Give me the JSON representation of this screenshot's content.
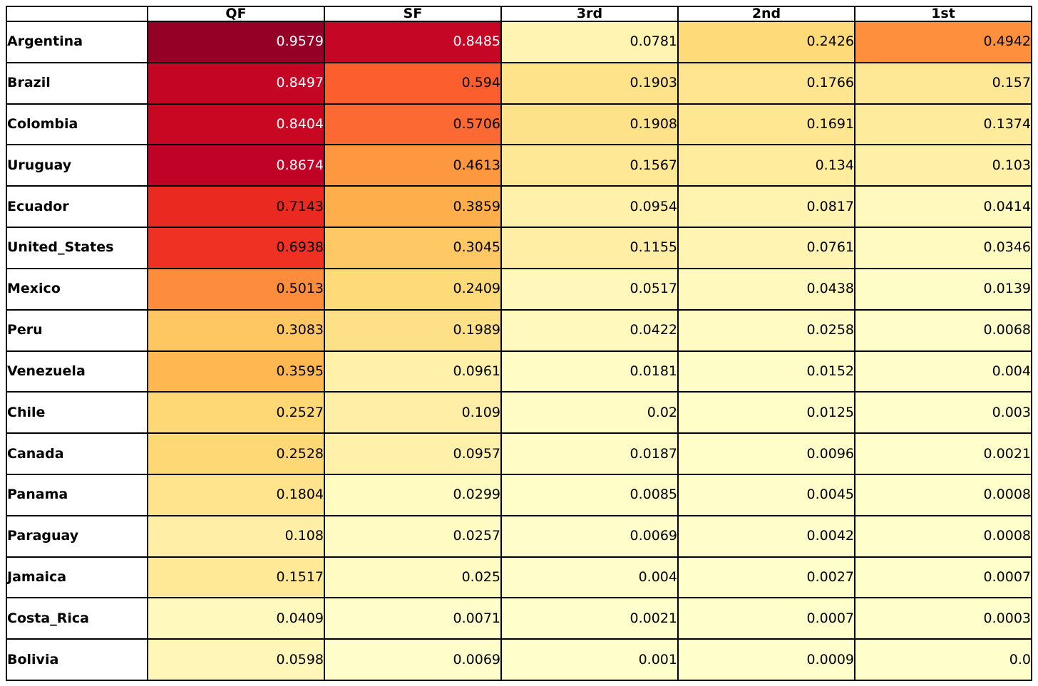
{
  "chart_data": {
    "type": "heatmap",
    "title": "",
    "xlabel": "",
    "ylabel": "",
    "legend": null,
    "grid": "black cell borders, no outer border on empty corner cell",
    "columns": [
      "QF",
      "SF",
      "3rd",
      "2nd",
      "1st"
    ],
    "rows": [
      {
        "label": "Argentina",
        "values": [
          0.9579,
          0.8485,
          0.0781,
          0.2426,
          0.4942
        ]
      },
      {
        "label": "Brazil",
        "values": [
          0.8497,
          0.594,
          0.1903,
          0.1766,
          0.157
        ]
      },
      {
        "label": "Colombia",
        "values": [
          0.8404,
          0.5706,
          0.1908,
          0.1691,
          0.1374
        ]
      },
      {
        "label": "Uruguay",
        "values": [
          0.8674,
          0.4613,
          0.1567,
          0.134,
          0.103
        ]
      },
      {
        "label": "Ecuador",
        "values": [
          0.7143,
          0.3859,
          0.0954,
          0.0817,
          0.0414
        ]
      },
      {
        "label": "United_States",
        "values": [
          0.6938,
          0.3045,
          0.1155,
          0.0761,
          0.0346
        ]
      },
      {
        "label": "Mexico",
        "values": [
          0.5013,
          0.2409,
          0.0517,
          0.0438,
          0.0139
        ]
      },
      {
        "label": "Peru",
        "values": [
          0.3083,
          0.1989,
          0.0422,
          0.0258,
          0.0068
        ]
      },
      {
        "label": "Venezuela",
        "values": [
          0.3595,
          0.0961,
          0.0181,
          0.0152,
          0.004
        ]
      },
      {
        "label": "Chile",
        "values": [
          0.2527,
          0.109,
          0.02,
          0.0125,
          0.003
        ]
      },
      {
        "label": "Canada",
        "values": [
          0.2528,
          0.0957,
          0.0187,
          0.0096,
          0.0021
        ]
      },
      {
        "label": "Panama",
        "values": [
          0.1804,
          0.0299,
          0.0085,
          0.0045,
          0.0008
        ]
      },
      {
        "label": "Paraguay",
        "values": [
          0.108,
          0.0257,
          0.0069,
          0.0042,
          0.0008
        ]
      },
      {
        "label": "Jamaica",
        "values": [
          0.1517,
          0.025,
          0.004,
          0.0027,
          0.0007
        ]
      },
      {
        "label": "Costa_Rica",
        "values": [
          0.0409,
          0.0071,
          0.0021,
          0.0007,
          0.0003
        ]
      },
      {
        "label": "Bolivia",
        "values": [
          0.0598,
          0.0069,
          0.001,
          0.0009,
          0.0
        ]
      }
    ],
    "colormap": {
      "name": "YlOrRd",
      "anchors": [
        "#ffffcc",
        "#ffeda0",
        "#fed976",
        "#feb24c",
        "#fd8d3c",
        "#fc4e2a",
        "#e31a1c",
        "#bd0026",
        "#800026"
      ],
      "vmin": 0,
      "vmax": 1
    },
    "text_colors": {
      "dark": "#000000",
      "light": "#ffffff",
      "light_threshold": 0.8
    },
    "border_color": "#000000",
    "background": "#ffffff"
  }
}
